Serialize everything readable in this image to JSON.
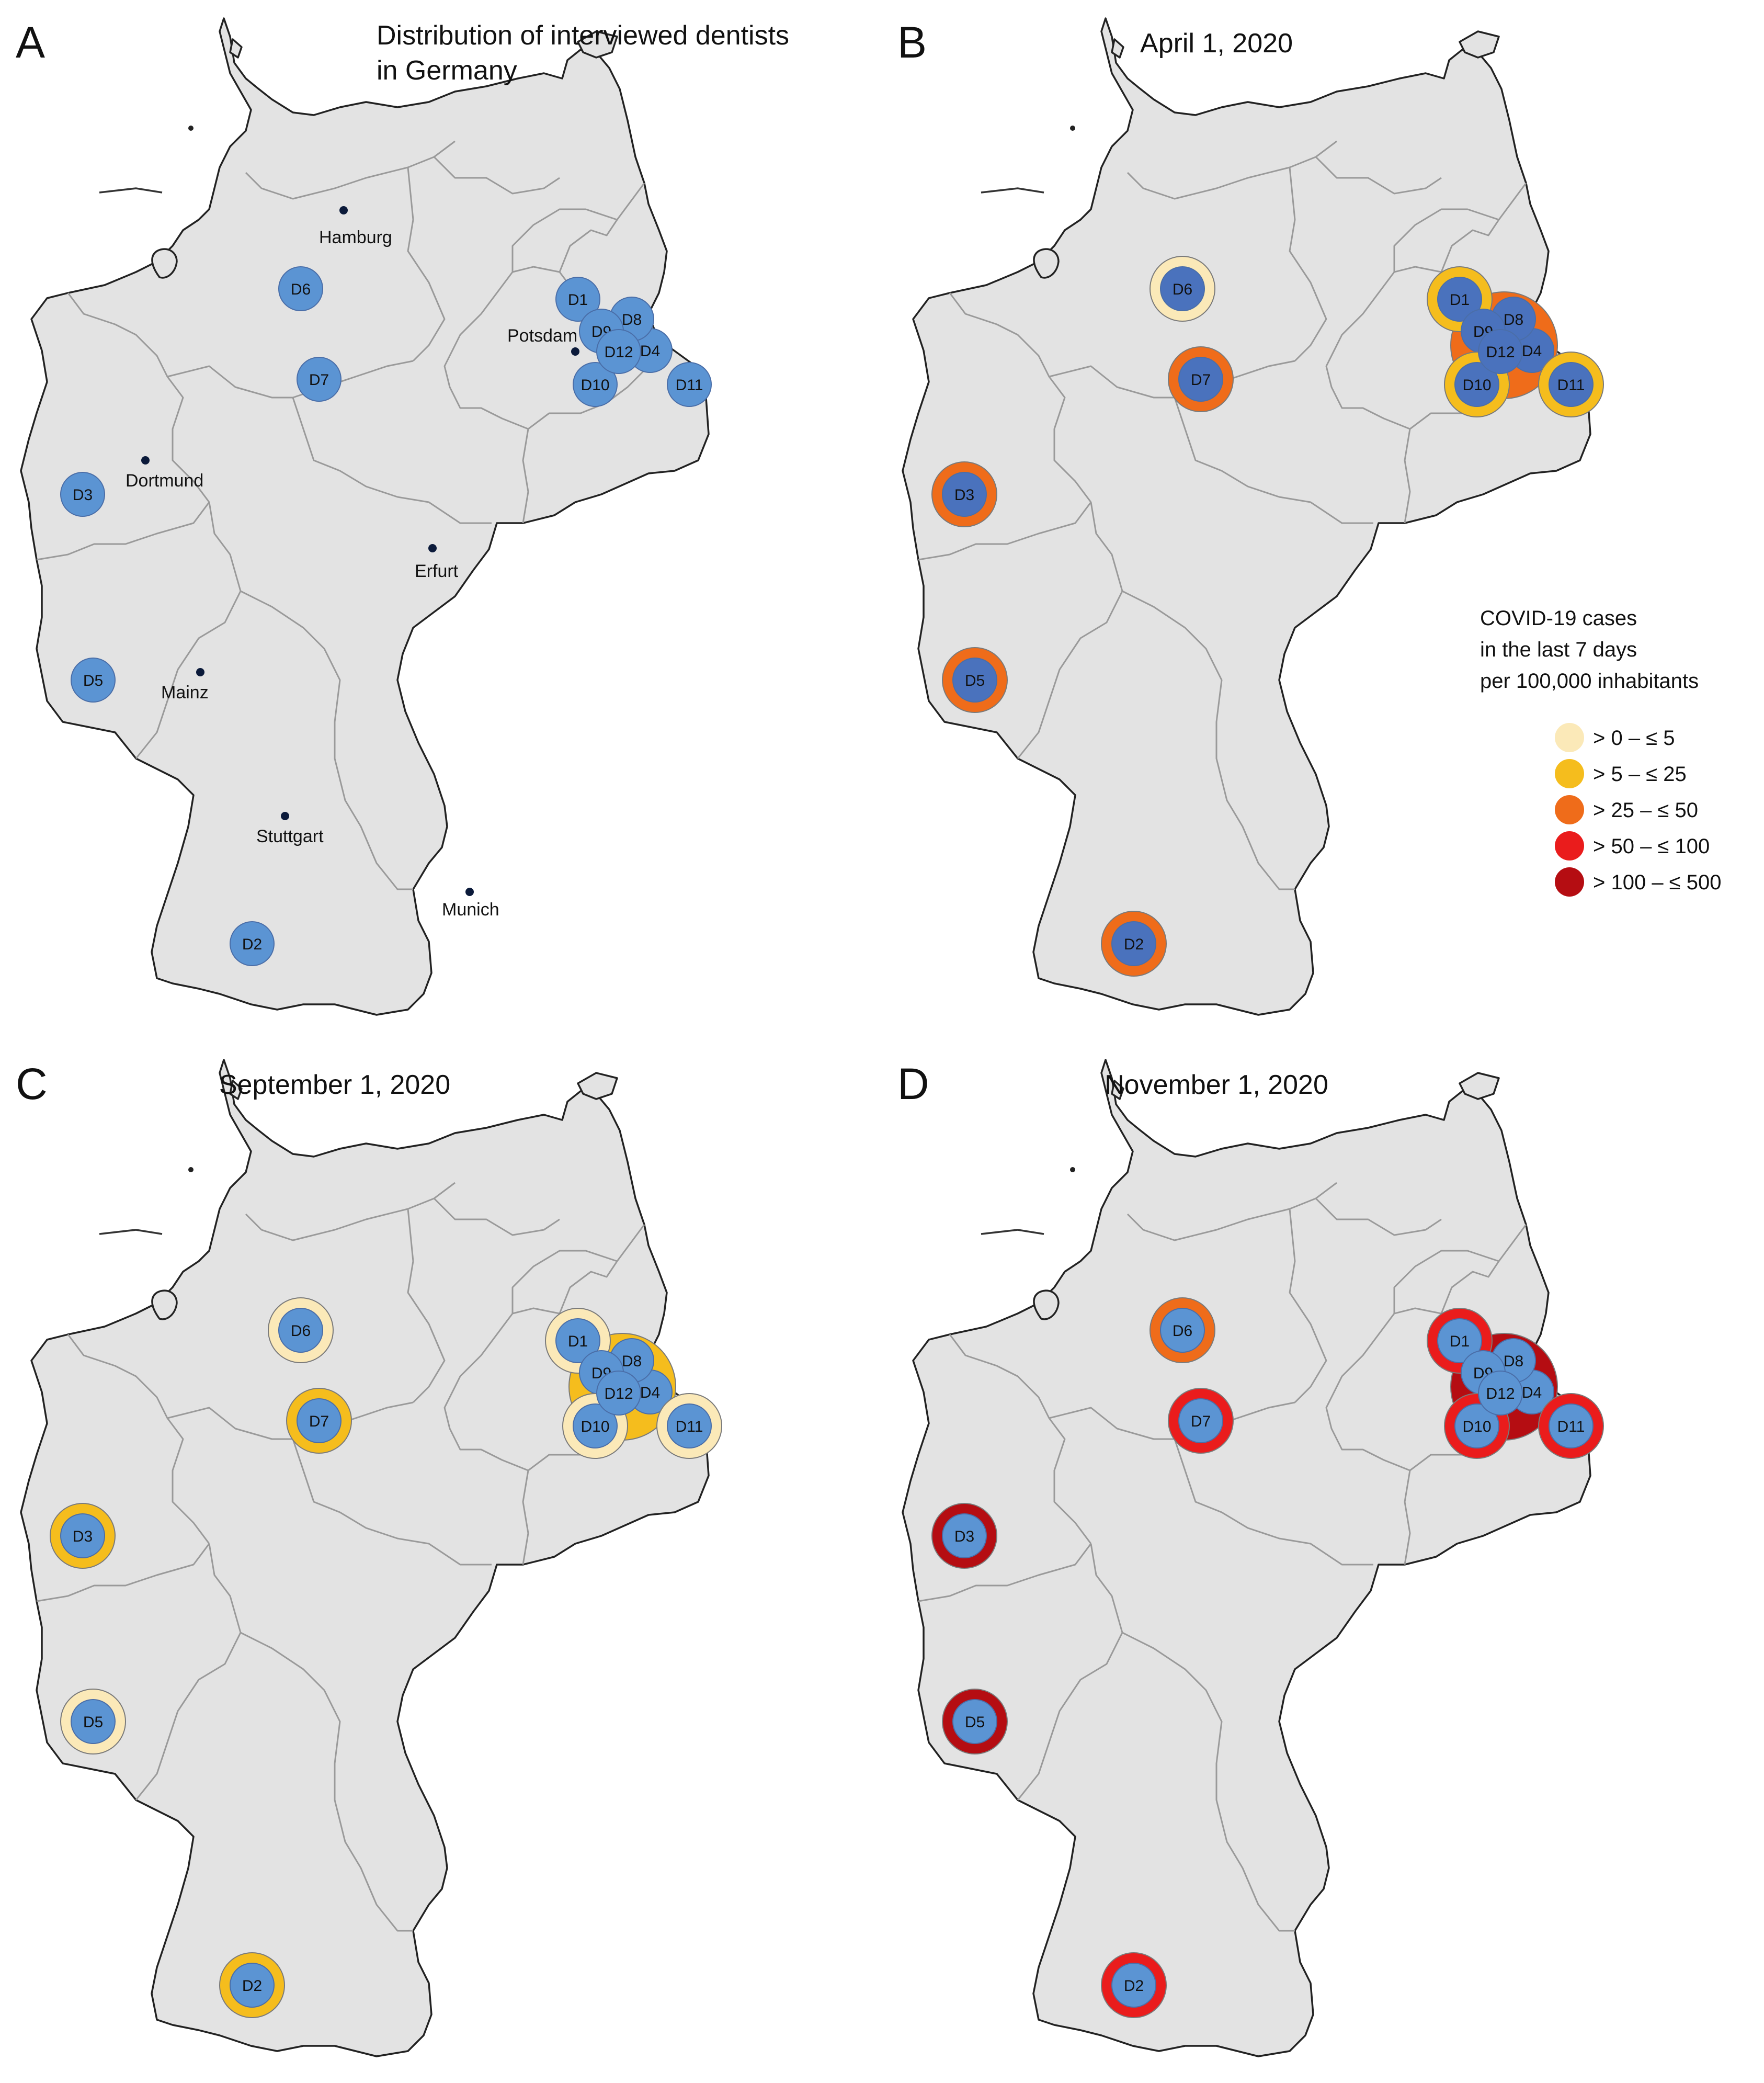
{
  "panels": [
    {
      "letter": "A",
      "title_lines": [
        "Distribution of interviewed dentists",
        "in Germany"
      ]
    },
    {
      "letter": "B",
      "title_lines": [
        "April 1, 2020"
      ]
    },
    {
      "letter": "C",
      "title_lines": [
        "September 1, 2020"
      ]
    },
    {
      "letter": "D",
      "title_lines": [
        "November 1, 2020"
      ]
    }
  ],
  "cities": [
    "Hamburg",
    "Potsdam",
    "Dortmund",
    "Erfurt",
    "Mainz",
    "Stuttgart",
    "Munich"
  ],
  "dentists": [
    "D1",
    "D2",
    "D3",
    "D4",
    "D5",
    "D6",
    "D7",
    "D8",
    "D9",
    "D10",
    "D11",
    "D12"
  ],
  "legend": {
    "title_lines": [
      "COVID-19 cases",
      "in the last 7 days",
      "per 100,000 inhabitants"
    ],
    "categories": [
      {
        "label": "> 0 –  ≤ 5",
        "color": "#fbe9b8"
      },
      {
        "label": "> 5 –  ≤ 25",
        "color": "#f5bd1d"
      },
      {
        "label": "> 25 –  ≤ 50",
        "color": "#ef6c1a"
      },
      {
        "label": "> 50 –  ≤ 100",
        "color": "#ea1c1c"
      },
      {
        "label": "> 100 –  ≤ 500",
        "color": "#b50d12"
      }
    ]
  },
  "incidence_by_panel": {
    "B": {
      "D1": 1,
      "D2": 2,
      "D3": 2,
      "D4": 2,
      "D5": 2,
      "D6": 0,
      "D7": 2,
      "D8": 2,
      "D9": 2,
      "D10": 1,
      "D11": 1,
      "D12": 2
    },
    "C": {
      "D1": 0,
      "D2": 1,
      "D3": 1,
      "D4": 1,
      "D5": 0,
      "D6": 0,
      "D7": 1,
      "D8": 1,
      "D9": 1,
      "D10": 0,
      "D11": 0,
      "D12": 1
    },
    "D": {
      "D1": 3,
      "D2": 3,
      "D3": 4,
      "D4": 4,
      "D5": 4,
      "D6": 2,
      "D7": 3,
      "D8": 4,
      "D9": 4,
      "D10": 3,
      "D11": 3,
      "D12": 4
    }
  },
  "colors": {
    "dentist_fill": "#5b94d3",
    "dentist_fill_dark": "#4a72bd",
    "land": "#e3e3e3"
  }
}
